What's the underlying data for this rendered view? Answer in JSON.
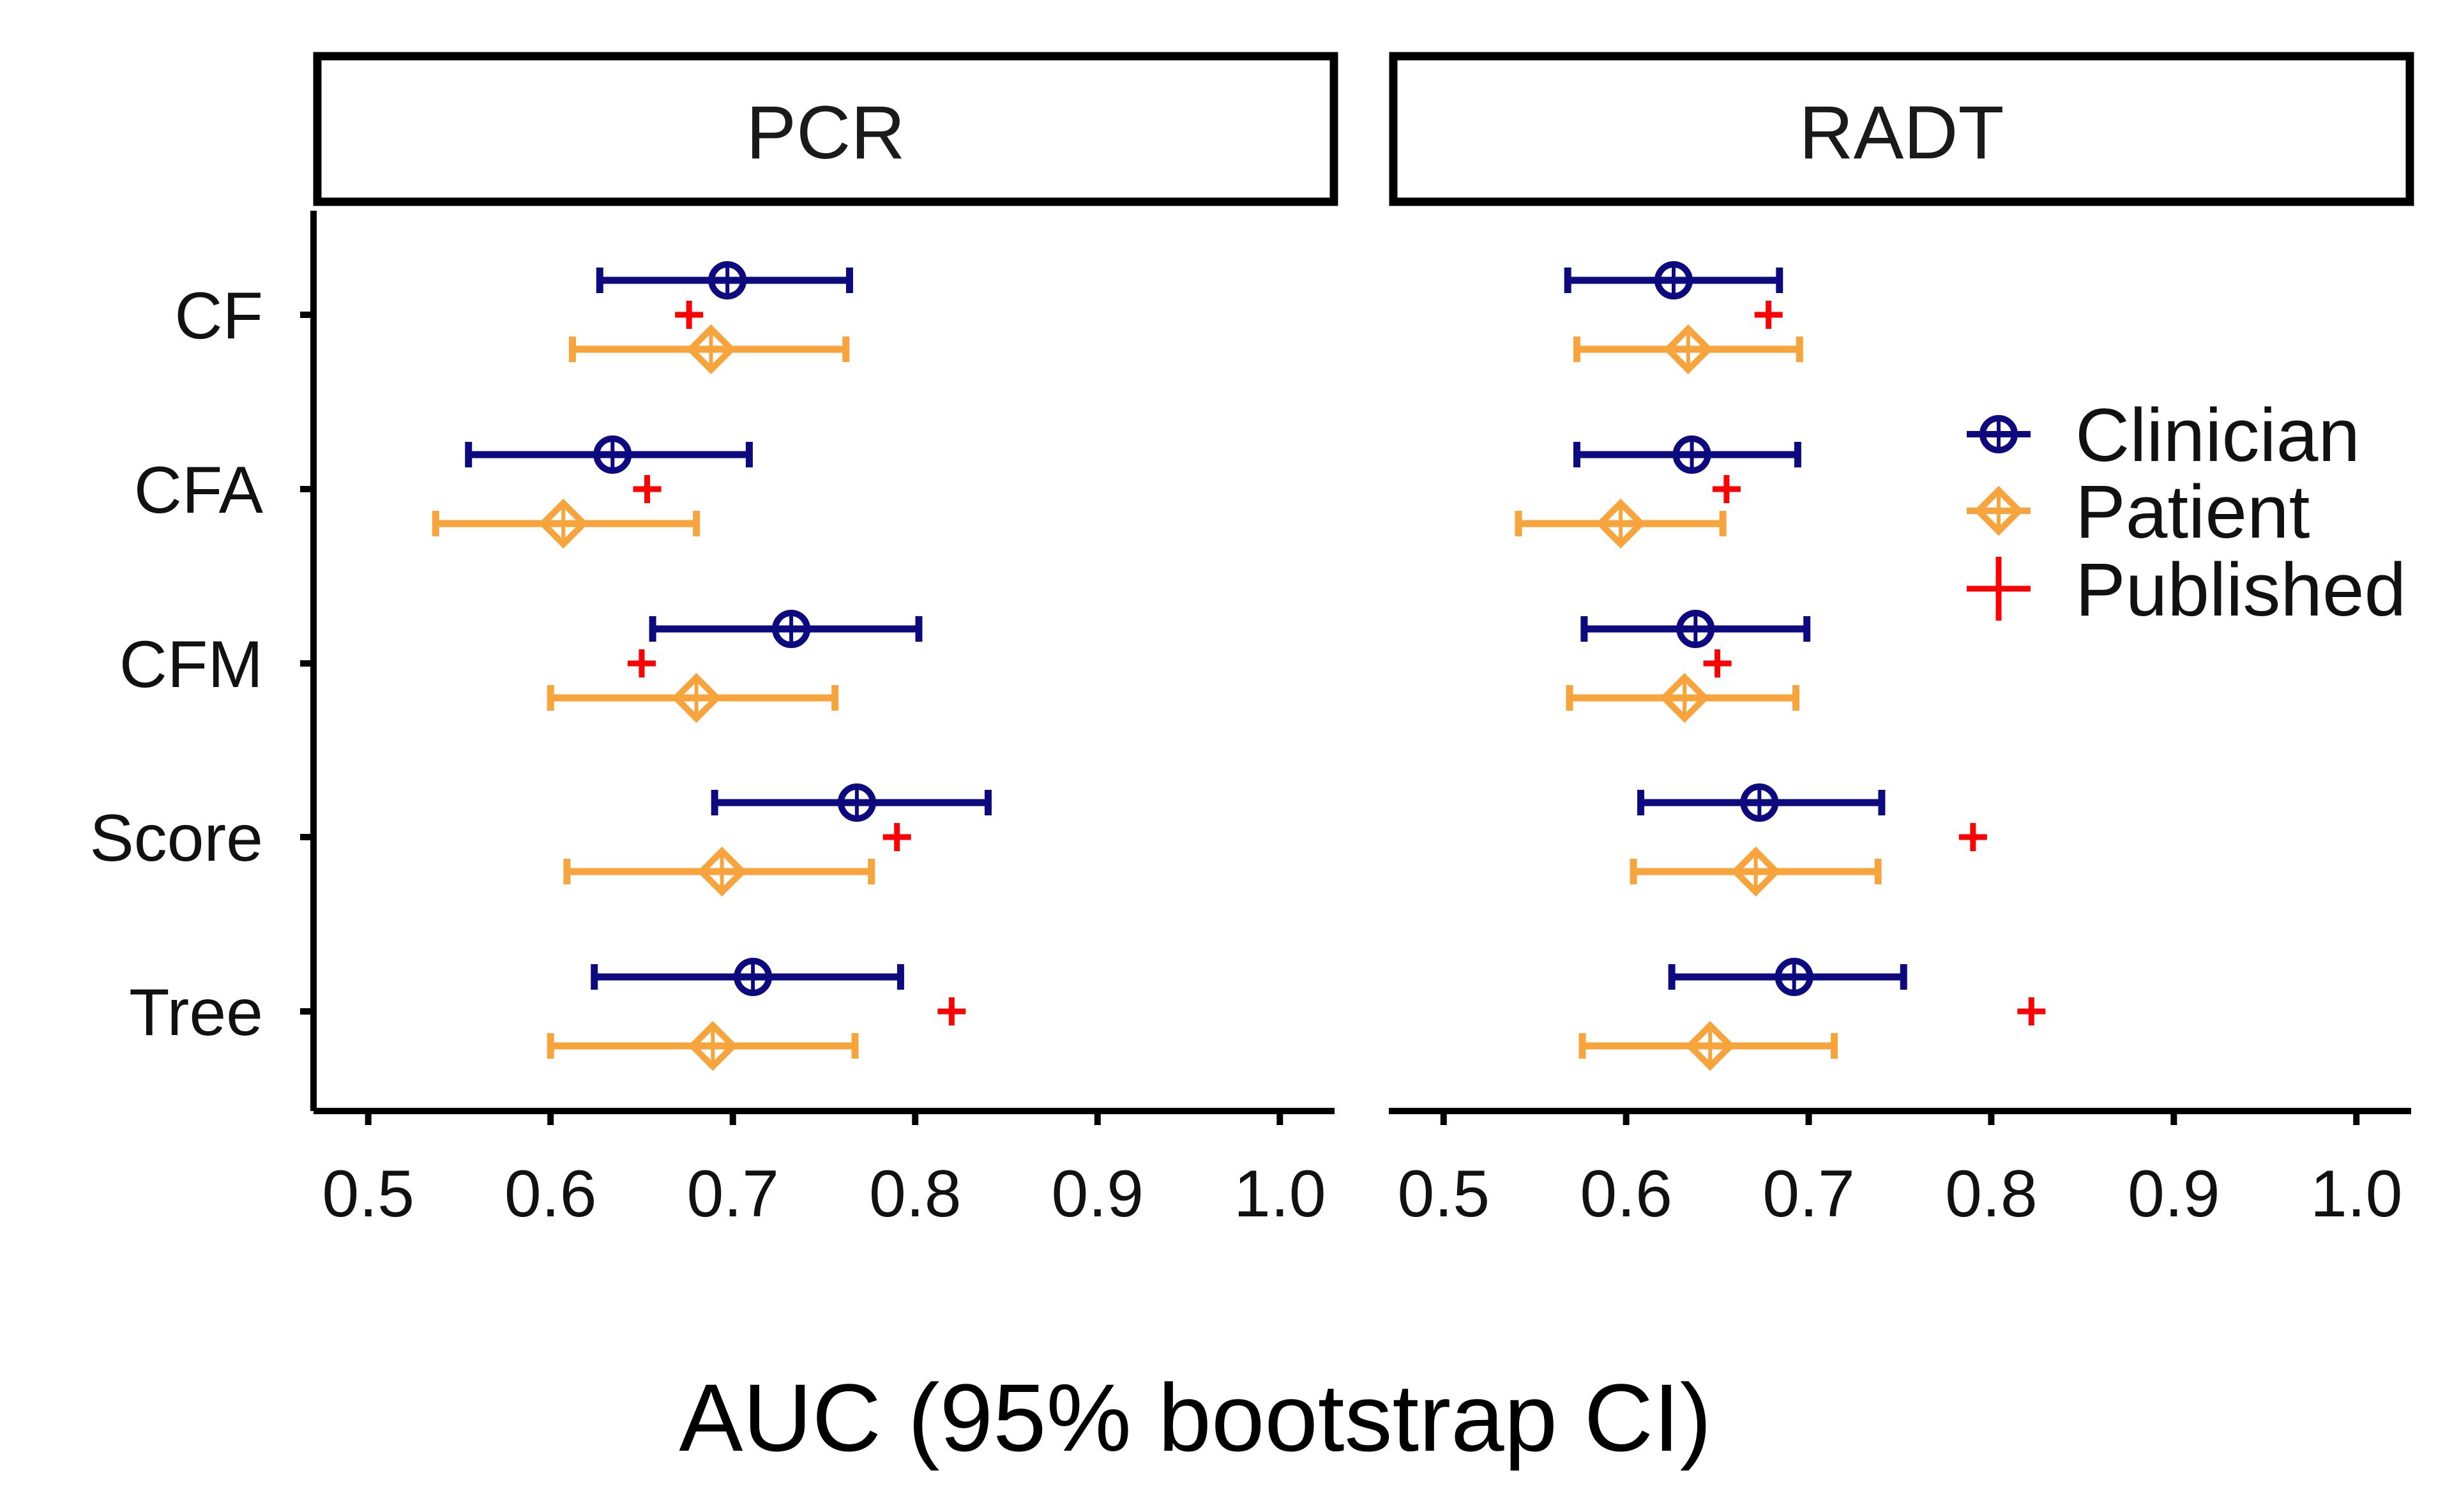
{
  "chart_data": {
    "type": "forest-plot",
    "xlabel": "AUC (95% bootstrap CI)",
    "xlim": [
      0.47,
      1.03
    ],
    "xticks": [
      "0.5",
      "0.6",
      "0.7",
      "0.8",
      "0.9",
      "1.0"
    ],
    "categories": [
      "CF",
      "CFA",
      "CFM",
      "Score",
      "Tree"
    ],
    "legend": {
      "placement": "right",
      "entries": [
        "Clinician",
        "Patient",
        "Published"
      ]
    },
    "colors": {
      "Clinician": "#0d0a80",
      "Patient": "#f7a43d",
      "Published": "#ff0000"
    },
    "panels": [
      {
        "title": "PCR",
        "series": [
          {
            "name": "Clinician",
            "estimate": [
              0.697,
              0.634,
              0.732,
              0.768,
              0.711
            ],
            "lower": [
              0.627,
              0.555,
              0.656,
              0.69,
              0.624
            ],
            "upper": [
              0.764,
              0.709,
              0.802,
              0.84,
              0.792
            ]
          },
          {
            "name": "Patient",
            "estimate": [
              0.688,
              0.607,
              0.68,
              0.694,
              0.689
            ],
            "lower": [
              0.612,
              0.537,
              0.6,
              0.609,
              0.6
            ],
            "upper": [
              0.762,
              0.68,
              0.756,
              0.776,
              0.767
            ]
          },
          {
            "name": "Published",
            "estimate": [
              0.676,
              0.653,
              0.65,
              0.79,
              0.82
            ]
          }
        ]
      },
      {
        "title": "RADT",
        "series": [
          {
            "name": "Clinician",
            "estimate": [
              0.626,
              0.636,
              0.638,
              0.673,
              0.692
            ],
            "lower": [
              0.568,
              0.573,
              0.577,
              0.608,
              0.625
            ],
            "upper": [
              0.684,
              0.694,
              0.699,
              0.74,
              0.752
            ]
          },
          {
            "name": "Patient",
            "estimate": [
              0.634,
              0.597,
              0.632,
              0.671,
              0.646
            ],
            "lower": [
              0.573,
              0.541,
              0.569,
              0.604,
              0.576
            ],
            "upper": [
              0.695,
              0.653,
              0.693,
              0.738,
              0.714
            ]
          },
          {
            "name": "Published",
            "estimate": [
              0.678,
              0.655,
              0.65,
              0.79,
              0.822
            ]
          }
        ]
      }
    ]
  }
}
